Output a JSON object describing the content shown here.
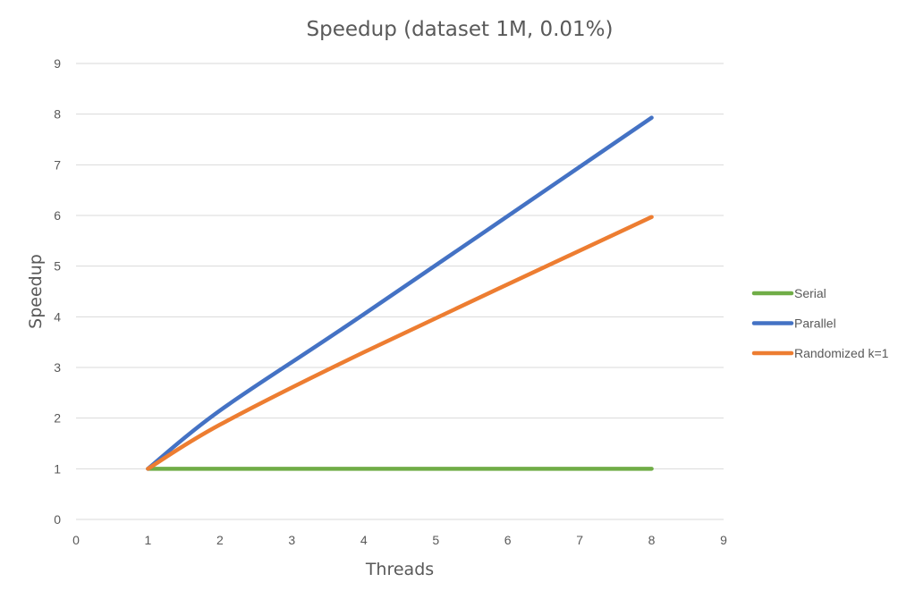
{
  "chart_data": {
    "type": "line",
    "title": "Speedup (dataset 1M, 0.01%)",
    "xlabel": "Threads",
    "ylabel": "Speedup",
    "xlim": [
      0,
      9
    ],
    "ylim": [
      0,
      9
    ],
    "xticks": [
      "0",
      "1",
      "2",
      "3",
      "4",
      "5",
      "6",
      "7",
      "8",
      "9"
    ],
    "yticks": [
      "0",
      "1",
      "2",
      "3",
      "4",
      "5",
      "6",
      "7",
      "8",
      "9"
    ],
    "grid": "horizontal",
    "legend_position": "right",
    "x": [
      1,
      2,
      4,
      8
    ],
    "series": [
      {
        "name": "Serial",
        "color": "#70ad47",
        "values": [
          1,
          1,
          1,
          1
        ]
      },
      {
        "name": "Parallel",
        "color": "#4472c4",
        "values": [
          1,
          2.15,
          4.05,
          7.93
        ]
      },
      {
        "name": "Randomized k=1",
        "color": "#ed7d31",
        "values": [
          1,
          1.87,
          3.3,
          5.97
        ]
      }
    ]
  }
}
